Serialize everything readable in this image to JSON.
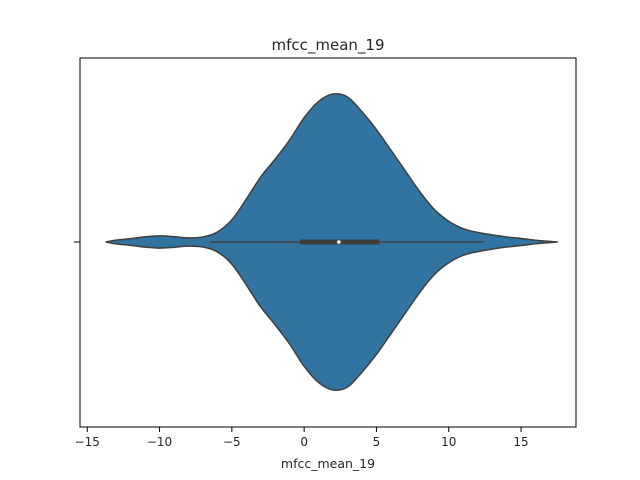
{
  "chart_data": {
    "type": "violin",
    "title": "mfcc_mean_19",
    "xlabel": "mfcc_mean_19",
    "ylabel": "",
    "xlim": [
      -15.5,
      18.8
    ],
    "xticks": [
      -15,
      -10,
      -5,
      0,
      5,
      10,
      15
    ],
    "xtick_labels": [
      "−15",
      "−10",
      "−5",
      "0",
      "5",
      "10",
      "15"
    ],
    "grid": false,
    "orientation": "horizontal",
    "color": "#3274a1",
    "edge_color": "#3f3f3f",
    "summary": {
      "min": -6.5,
      "q1": -0.3,
      "median": 2.4,
      "q3": 5.2,
      "max": 12.4
    },
    "density_profile": [
      {
        "x": -13.7,
        "half_width": 0.0
      },
      {
        "x": -13.0,
        "half_width": 0.013
      },
      {
        "x": -12.0,
        "half_width": 0.023
      },
      {
        "x": -11.0,
        "half_width": 0.035
      },
      {
        "x": -10.0,
        "half_width": 0.041
      },
      {
        "x": -9.0,
        "half_width": 0.036
      },
      {
        "x": -8.0,
        "half_width": 0.028
      },
      {
        "x": -7.0,
        "half_width": 0.034
      },
      {
        "x": -6.0,
        "half_width": 0.067
      },
      {
        "x": -5.0,
        "half_width": 0.15
      },
      {
        "x": -4.0,
        "half_width": 0.29
      },
      {
        "x": -3.0,
        "half_width": 0.44
      },
      {
        "x": -2.0,
        "half_width": 0.56
      },
      {
        "x": -1.0,
        "half_width": 0.69
      },
      {
        "x": 0.0,
        "half_width": 0.84
      },
      {
        "x": 1.0,
        "half_width": 0.95
      },
      {
        "x": 2.0,
        "half_width": 1.0
      },
      {
        "x": 3.0,
        "half_width": 0.98
      },
      {
        "x": 4.0,
        "half_width": 0.88
      },
      {
        "x": 5.0,
        "half_width": 0.76
      },
      {
        "x": 6.0,
        "half_width": 0.62
      },
      {
        "x": 7.0,
        "half_width": 0.48
      },
      {
        "x": 8.0,
        "half_width": 0.34
      },
      {
        "x": 9.0,
        "half_width": 0.22
      },
      {
        "x": 10.0,
        "half_width": 0.14
      },
      {
        "x": 11.0,
        "half_width": 0.09
      },
      {
        "x": 12.0,
        "half_width": 0.065
      },
      {
        "x": 13.0,
        "half_width": 0.048
      },
      {
        "x": 14.0,
        "half_width": 0.034
      },
      {
        "x": 15.0,
        "half_width": 0.024
      },
      {
        "x": 16.0,
        "half_width": 0.012
      },
      {
        "x": 17.0,
        "half_width": 0.004
      },
      {
        "x": 17.5,
        "half_width": 0.0
      }
    ]
  }
}
